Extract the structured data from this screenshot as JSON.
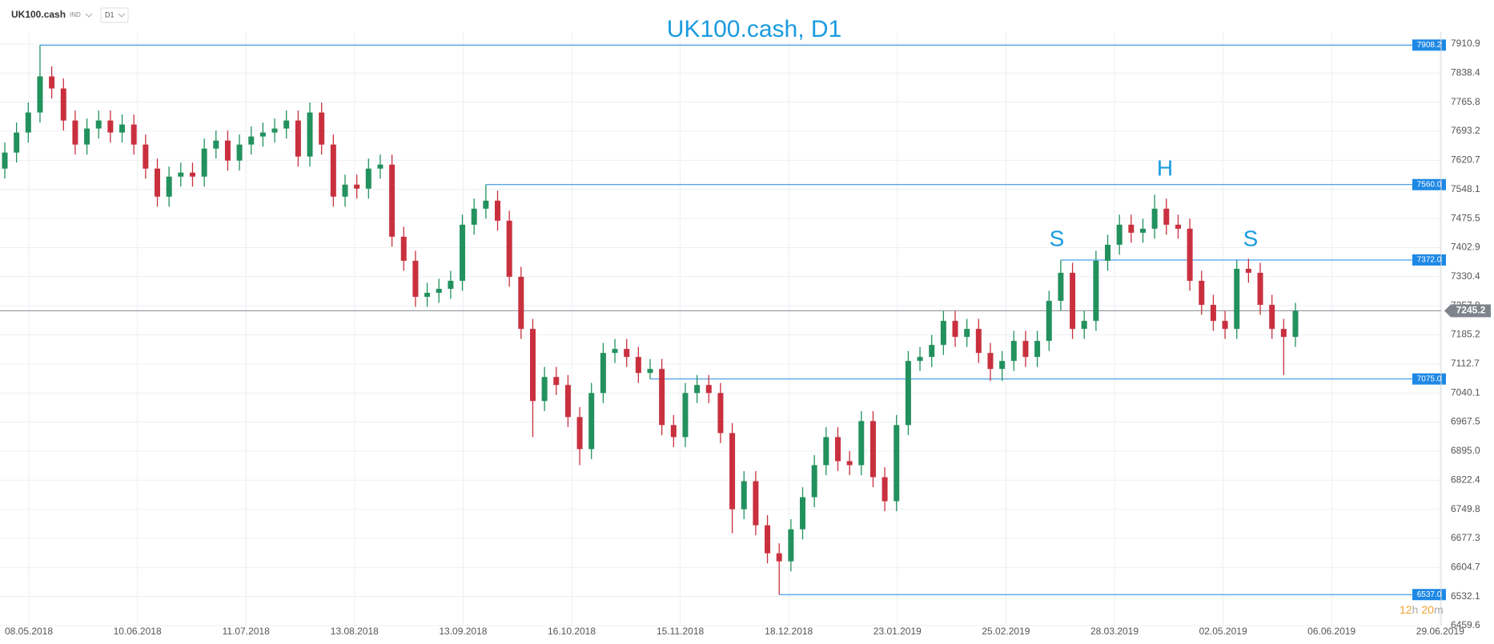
{
  "toolbar": {
    "symbol": "UK100.cash",
    "type_dropdown": "IND",
    "timeframe_dropdown": "D1"
  },
  "chart_data": {
    "type": "candlestick",
    "title": "UK100.cash, D1",
    "up_color": "#22915e",
    "down_color": "#c9303e",
    "level_color": "#1e88e5",
    "grid": true,
    "x_labels": [
      "08.05.2018",
      "10.06.2018",
      "11.07.2018",
      "13.08.2018",
      "13.09.2018",
      "16.10.2018",
      "15.11.2018",
      "18.12.2018",
      "23.01.2019",
      "25.02.2019",
      "28.03.2019",
      "02.05.2019",
      "06.06.2019",
      "29.06.2019"
    ],
    "ylim": [
      6459.6,
      7910.9
    ],
    "yticks": [
      6459.6,
      6532.1,
      6604.7,
      6677.3,
      6749.8,
      6822.4,
      {
        "value": 6895,
        "label": "6895.0"
      },
      6967.5,
      7040.1,
      7112.7,
      7185.2,
      7257.8,
      7330.4,
      7402.9,
      7475.5,
      7548.1,
      7620.7,
      7693.2,
      7765.8,
      7838.4,
      7910.9
    ],
    "open": [
      7600,
      7640,
      7690,
      7740,
      7830,
      7800,
      7720,
      7660,
      7700,
      7720,
      7690,
      7710,
      7660,
      7600,
      7530,
      7580,
      7590,
      7580,
      7650,
      7670,
      7620,
      7660,
      7680,
      7690,
      7700,
      7720,
      7630,
      7740,
      7660,
      7530,
      7560,
      7550,
      7600,
      7610,
      7430,
      7370,
      7280,
      7290,
      7300,
      7320,
      7460,
      7500,
      7520,
      7470,
      7330,
      7200,
      7020,
      7080,
      7060,
      6980,
      6900,
      7040,
      7140,
      7150,
      7130,
      7090,
      7100,
      6960,
      6930,
      7040,
      7060,
      7040,
      6940,
      6750,
      6820,
      6710,
      6640,
      6620,
      6700,
      6780,
      6860,
      6930,
      6870,
      6860,
      6970,
      6830,
      6770,
      6960,
      7120,
      7130,
      7160,
      7220,
      7180,
      7200,
      7140,
      7100,
      7120,
      7170,
      7130,
      7170,
      7270,
      7340,
      7200,
      7220,
      7370,
      7410,
      7460,
      7440,
      7450,
      7500,
      7460,
      7450,
      7320,
      7260,
      7220,
      7200,
      7350,
      7340,
      7260,
      7200,
      7180
    ],
    "high": [
      7665,
      7715,
      7765,
      7908.2,
      7855,
      7825,
      7745,
      7725,
      7745,
      7745,
      7735,
      7735,
      7685,
      7625,
      7605,
      7615,
      7615,
      7675,
      7695,
      7695,
      7685,
      7705,
      7715,
      7725,
      7745,
      7745,
      7765,
      7765,
      7685,
      7585,
      7585,
      7625,
      7635,
      7635,
      7455,
      7395,
      7315,
      7325,
      7345,
      7485,
      7525,
      7560,
      7545,
      7495,
      7355,
      7225,
      7105,
      7105,
      7085,
      7005,
      7065,
      7165,
      7175,
      7175,
      7155,
      7125,
      7125,
      6985,
      7065,
      7085,
      7085,
      7065,
      6965,
      6845,
      6845,
      6735,
      6665,
      6725,
      6805,
      6885,
      6955,
      6955,
      6895,
      6995,
      6995,
      6855,
      6985,
      7145,
      7155,
      7185,
      7245,
      7245,
      7225,
      7225,
      7165,
      7145,
      7195,
      7195,
      7195,
      7295,
      7372,
      7365,
      7245,
      7395,
      7435,
      7485,
      7485,
      7475,
      7535,
      7525,
      7485,
      7475,
      7345,
      7285,
      7245,
      7372,
      7375,
      7365,
      7285,
      7225,
      7265
    ],
    "low": [
      7575,
      7615,
      7665,
      7715,
      7775,
      7695,
      7635,
      7635,
      7675,
      7665,
      7665,
      7635,
      7575,
      7505,
      7505,
      7555,
      7555,
      7555,
      7625,
      7595,
      7595,
      7635,
      7655,
      7665,
      7675,
      7605,
      7605,
      7635,
      7505,
      7505,
      7525,
      7525,
      7575,
      7405,
      7345,
      7255,
      7255,
      7265,
      7275,
      7295,
      7435,
      7475,
      7445,
      7305,
      7175,
      6930,
      6995,
      7035,
      6955,
      6860,
      6875,
      7015,
      7115,
      7105,
      7065,
      7075,
      6935,
      6905,
      6905,
      7015,
      7015,
      6915,
      6690,
      6725,
      6685,
      6615,
      6537,
      6595,
      6675,
      6755,
      6835,
      6845,
      6835,
      6835,
      6805,
      6745,
      6745,
      6935,
      7095,
      7105,
      7135,
      7155,
      7155,
      7115,
      7070,
      7070,
      7095,
      7105,
      7105,
      7145,
      7245,
      7175,
      7175,
      7195,
      7345,
      7385,
      7415,
      7415,
      7425,
      7435,
      7425,
      7295,
      7235,
      7195,
      7175,
      7175,
      7315,
      7235,
      7175,
      7085,
      7155
    ],
    "close": [
      7640,
      7690,
      7740,
      7830,
      7800,
      7720,
      7660,
      7700,
      7720,
      7690,
      7710,
      7660,
      7600,
      7530,
      7580,
      7590,
      7580,
      7650,
      7670,
      7620,
      7660,
      7680,
      7690,
      7700,
      7720,
      7630,
      7740,
      7660,
      7530,
      7560,
      7550,
      7600,
      7610,
      7430,
      7370,
      7280,
      7290,
      7300,
      7320,
      7460,
      7500,
      7520,
      7470,
      7330,
      7200,
      7020,
      7080,
      7060,
      6980,
      6900,
      7040,
      7140,
      7150,
      7130,
      7090,
      7100,
      6960,
      6930,
      7040,
      7060,
      7040,
      6940,
      6750,
      6820,
      6710,
      6640,
      6620,
      6700,
      6780,
      6860,
      6930,
      6870,
      6860,
      6970,
      6830,
      6770,
      6960,
      7120,
      7130,
      7160,
      7220,
      7180,
      7200,
      7140,
      7100,
      7120,
      7170,
      7130,
      7170,
      7270,
      7340,
      7200,
      7220,
      7370,
      7410,
      7460,
      7440,
      7450,
      7500,
      7460,
      7450,
      7320,
      7260,
      7220,
      7200,
      7350,
      7340,
      7260,
      7200,
      7180,
      7245.2
    ],
    "levels": [
      7908.2,
      7560,
      7372,
      7075,
      6537
    ],
    "level_labels": [
      "7908.2",
      "7560.0",
      "7372.0",
      "7075.0",
      "6537.0"
    ],
    "last_price": 7245.2,
    "annotations": [
      "S",
      "H",
      "S"
    ],
    "timer": {
      "hours": "12",
      "h": "h",
      "minutes": "20",
      "m": "m"
    }
  }
}
